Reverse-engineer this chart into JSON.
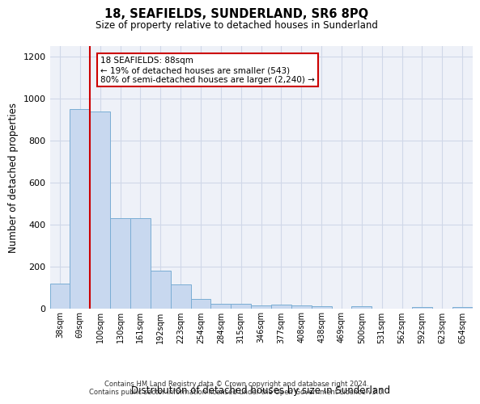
{
  "title": "18, SEAFIELDS, SUNDERLAND, SR6 8PQ",
  "subtitle": "Size of property relative to detached houses in Sunderland",
  "xlabel": "Distribution of detached houses by size in Sunderland",
  "ylabel": "Number of detached properties",
  "categories": [
    "38sqm",
    "69sqm",
    "100sqm",
    "130sqm",
    "161sqm",
    "192sqm",
    "223sqm",
    "254sqm",
    "284sqm",
    "315sqm",
    "346sqm",
    "377sqm",
    "408sqm",
    "438sqm",
    "469sqm",
    "500sqm",
    "531sqm",
    "562sqm",
    "592sqm",
    "623sqm",
    "654sqm"
  ],
  "values": [
    120,
    950,
    940,
    430,
    430,
    180,
    115,
    45,
    22,
    22,
    15,
    18,
    15,
    10,
    0,
    10,
    0,
    0,
    8,
    0,
    8
  ],
  "bar_color": "#c8d8ef",
  "bar_edge_color": "#7aadd4",
  "vline_x": 1.5,
  "vline_color": "#cc0000",
  "annotation_text": "18 SEAFIELDS: 88sqm\n← 19% of detached houses are smaller (543)\n80% of semi-detached houses are larger (2,240) →",
  "annotation_box_color": "#ffffff",
  "annotation_box_edge": "#cc0000",
  "ylim": [
    0,
    1250
  ],
  "yticks": [
    0,
    200,
    400,
    600,
    800,
    1000,
    1200
  ],
  "grid_color": "#d0d8e8",
  "background_color": "#eef1f8",
  "footer": "Contains HM Land Registry data © Crown copyright and database right 2024.\nContains public sector information licensed under the Open Government Licence v3.0."
}
